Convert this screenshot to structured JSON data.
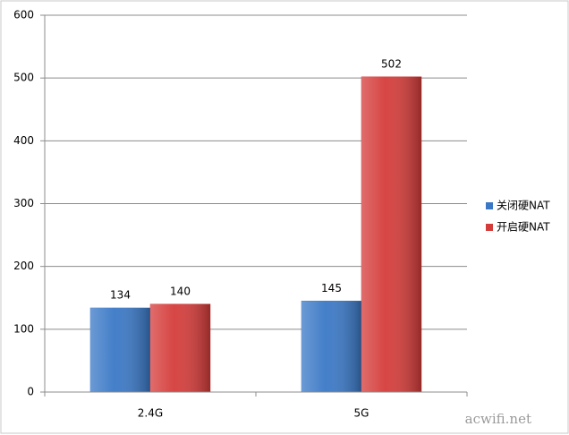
{
  "chart_data": {
    "type": "bar",
    "categories": [
      "2.4G",
      "5G"
    ],
    "series": [
      {
        "name": "关闭硬NAT",
        "color": "#3a78c6",
        "values": [
          134,
          145
        ]
      },
      {
        "name": "开启硬NAT",
        "color": "#d43c3a",
        "values": [
          140,
          502
        ]
      }
    ],
    "ylim": [
      0,
      600
    ],
    "yticks": [
      0,
      100,
      200,
      300,
      400,
      500,
      600
    ],
    "grid": true,
    "legend": "right",
    "watermark": "acwifi.net"
  }
}
